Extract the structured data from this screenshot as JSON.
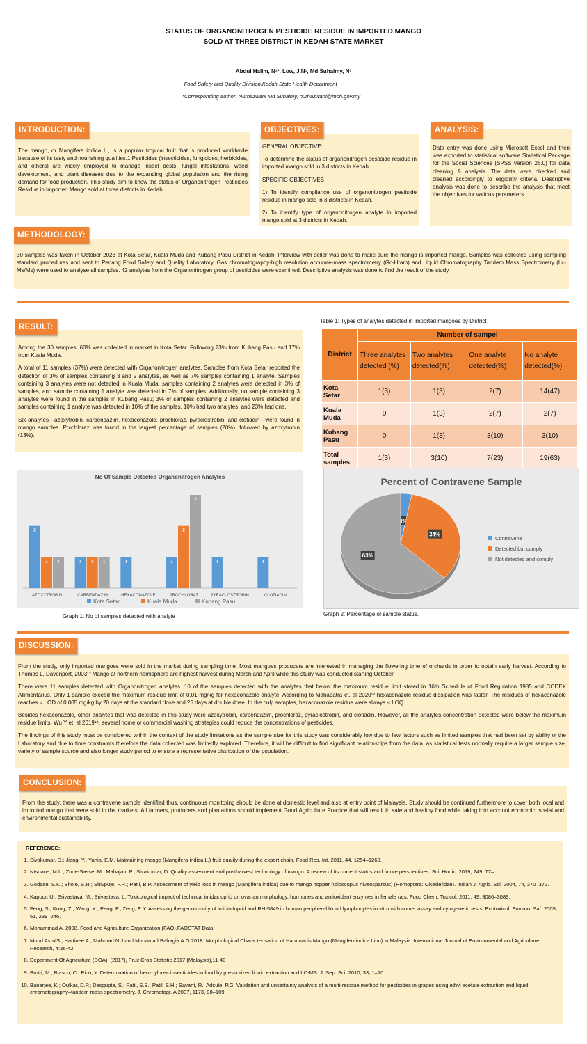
{
  "header": {
    "title_line1": "STATUS OF ORGANONITROGEN PESTICIDE RESIDUE IN IMPORTED MANGO",
    "title_line2": "SOLD AT THREE DISTRICT IN KEDAH STATE MARKET",
    "authors": "Abdul Halim, N¹*, Low, J.N¹, Md Suhaimy, N¹",
    "affiliation": "¹ Food Safety and Quality Division,Kedah State Health Department",
    "corresponding": "*Corresponding author: Nurhazwani Md Suhaimy, nurhazwani@moh.gov.my"
  },
  "introduction": {
    "heading": "INTRODUCTION:",
    "text": "The mango, or Mangifera indica L., is a popular tropical fruit that is produced worldwide because of its tasty and nourishing qualities.1 Pesticides (insecticides, fungicides, herbicides, and others) are widely employed to manage insect pests, fungal infestations, weed development, and plant diseases due to the expanding global population and the rising demand for food production. This study aim to know the status of Organonitrogen Pesticides Residue in Imported Mango sold at three districts in Kedah."
  },
  "objectives": {
    "heading": "OBJECTIVES:",
    "paragraphs": [
      "GENERAL OBJECTIVE:",
      "To determine the status of organonitrogen pestiside residue in imported mango sold in 3 districts in Kedah.",
      "SPECIFIC OBJECTIVES",
      "1)  To identify compliance use of organonitrogen pestiside residue in mango sold in 3 districts in Kedah.",
      "2)  To identify type of organonitrogen analyte in imported mango sold at 3 districts in Kedah."
    ]
  },
  "analysis": {
    "heading": "ANALYSIS:",
    "text": "Data entry was done using Microsoft Excel and then was exported to statistical software Statistical Package for the Social Sciences (SPSS version 26.0) for data cleaning & analysis. The data were checked and cleaned accordingly to eligibility criteria.  Descriptive analysis was done to describe the analysis that meet the objectives for various parameters."
  },
  "methodology": {
    "heading": "METHODOLOGY:",
    "text": "30 samples was taken in October 2023 at Kota Setar, Kuala Muda and Kubang Pasu District in Kedah. Interview with seller was done to make sure the mango is imported mango. Samples was collected using sampling standard procedures and sent to Penang Food Safety and Quality Laboratory. Gas chromatography-high resolution accurate-mass spectrometry (Gc-Hram) and Liquid Chromatography Tandem Mass Spectrometry (Lc-Ms/Ms) were used to analyse all samples. 42 analytes from the Organonitrogen group of pesticides were examined. Descriptive analysis was done to find the result of the study."
  },
  "result": {
    "heading": "RESULT:",
    "paragraphs": [
      "Among the 30 samples, 60% was collected in market in Kota Setar. Following 23% from Kubang Pasu and 17% from Kuala Muda.",
      "A total of 11 samples (37%) were detected with Organonitrogen analytes. Samples from Kota Setar reported the detection of 3% of samples containing 3 and 2 analytes, as well as 7% samples containing 1 analyte. Samples containing 3 analytes were not detected in Kuala Muda; samples containing 2 analytes were detected in 3% of samples, and sample containing 1 analyte was detected in 7% of samples. Additionally, no sample containing 3 analytes were found in the samples in Kubang Pasu; 3% of samples containing 2 analytes were detected and samples containing 1 analyte was detected in 10% of the samples. 10% had two analytes, and 23% had one.",
      "Six analytes—azoxytrobin, carbendazim, hexaconazole, prochloraz, pyraclostrobin, and clotiadin—were found in mango samples. Prochloraz was found in the largest percentage of samples (20%), followed by azoxytrobin (13%)."
    ]
  },
  "table": {
    "caption": "Table 1: Types of analytes detected in imported mangoes by District",
    "header_district": "District",
    "header_group": "Number of sampel",
    "columns": [
      "Three analytes detected (%)",
      "Two analytes detected(%)",
      "One analyte detected(%)",
      "No analyte detected(%)"
    ],
    "rows": [
      [
        "Kota Setar",
        "1(3)",
        "1(3)",
        "2(7)",
        "14(47)"
      ],
      [
        "Kuala Muda",
        "0",
        "1(3)",
        "2(7)",
        "2(7)"
      ],
      [
        "Kubang Pasu",
        "0",
        "1(3)",
        "3(10)",
        "3(10)"
      ],
      [
        "Total samples",
        "1(3)",
        "3(10)",
        "7(23)",
        "19(63)"
      ]
    ]
  },
  "chart_data": [
    {
      "type": "bar",
      "title": "No Of Sample Detected Organonitrogen Analytes",
      "caption": "Graph 1: No of samples detected with analyte",
      "categories": [
        "AZOXYTROBIN",
        "CARBENDAZIM",
        "HEXACONAZOLE",
        "PROCHLORAZ",
        "PYRACLOSTROBIN",
        "CLOTIADIN"
      ],
      "series": [
        {
          "name": "Kota Setar",
          "color": "#5b9bd5",
          "values": [
            2,
            1,
            1,
            1,
            1,
            1
          ]
        },
        {
          "name": "Kuala Muda",
          "color": "#ed7d31",
          "values": [
            1,
            1,
            null,
            2,
            null,
            null
          ]
        },
        {
          "name": "Kubang Pasu",
          "color": "#a5a5a5",
          "values": [
            1,
            1,
            null,
            3,
            null,
            null
          ]
        }
      ],
      "grid": true
    },
    {
      "type": "pie",
      "title": "Percent of Contravene Sample",
      "caption": "Graph 2: Percentage of sample status.",
      "categories": [
        "Contravene",
        "Detected but comply",
        "Not detected and comply"
      ],
      "values": [
        3,
        34,
        63
      ],
      "value_labels": [
        "3%",
        "34%",
        "63%"
      ],
      "colors": [
        "#5b9bd5",
        "#ed7d31",
        "#a5a5a5"
      ]
    }
  ],
  "discussion": {
    "heading": "DISCUSSION:",
    "paragraphs": [
      "From the study, only imported mangoes were sold in the market during sampling time. Most mangoes producers are interested in managing the flowering time of orchards in order to obtain early harvest. According to Thomas L. Davenport, 2003¹² Mango at northern hemisphere are highest harvest during March and April while this study was conducted starting October.",
      "There were 11 samples detected with Organonitrogen analytes. 10 of the samples detected with the analytes that below the maximum residue limit stated in 16th Schedule of Food Regulation 1985 and CODEX Allimentarius. Only 1 sample exceed the maximum residue limit of 0.01 mg/kg for hexaconazole analyte. According to Mahapatra et. al 2020¹³ hexaconazole residue dissipation was faster. The residues of hexaconazole reaches < LOD of 0.005 mg/kg by 20 days at the standard dose and 25 days at double dose. In the pulp samples, hexaconazole residue were always < LOQ.",
      "Besides hexaconazole, other analytes that was detected in this study were azoxytrobin, carbendazim, prochloraz, pyraclostrobin, and clotiadin. However, all the analytes concentration detected were below the maximum residue limits. Wu Y et. al 2019¹⁴, several home or commercial washing strategies could reduce the concentrations of pesticides.",
      "The findings of this study must be considered within the context of the study limitations as the sample size for this study was considerably low due to few factors such as limited samples that had been set by ability of the Laboratory and due to time constraints therefore the data collected was limitedly explored. Therefore, it will be difficult to find significant relationships from the data, as statistical tests normally require a larger sample size, variety of sample source and also longer study period to ensure a representative distribution of the population."
    ]
  },
  "conclusion": {
    "heading": "CONCLUSION:",
    "text": "From the study, there was a contravene sample identified thus, continuous monitoring should be done at domestic level and also at entry point of Malaysia. Study should be continued furthermore to cover both local and imported mango that were sold in the markets. All farmers, producers and plantations should implement Good Agriculture Practice that will result in safe and healthy food while taking into account economic, sosial and environmental sustainability."
  },
  "references": {
    "heading": "REFERENCE:",
    "items": [
      "Sivakumar, D.; Jiang, Y.; Yahia, E.M. Maintaining mango (Mangifera indica L.) fruit quality during the export chain. Food Res. Int. 2011, 44, 1254–1263.",
      "Ntsoane, M.L.; Zude-Sasse, M.; Mahajan, P.; Sivakumar, D. Quality assesment and postharvest technology of mango: A review of its current status and future perspectives. Sci. Hortic. 2019, 249, 77–",
      "Godase, S.K.; Bhole, S.R.; Shivpuje, P.R.; Patil, B.P. Assessment of yield loss in mango (Mangifera indica) due to mango hopper (Idioscopus niveosparsus) (Homoptera: Cicadelidae). Indian J. Agric. Sci. 2004, 74, 370–372.",
      "Kapoor, U.; Srivastava, M.; Srivastava, L. Toxicological impact of technical imidacloprid on ovarian morphology, hormones and antioxidant enzymes in female rats. Food Chem. Toxicol. 2011, 49, 3086–3089.",
      "Feng, S.; Kong, Z.; Wang, X.; Peng, P.; Zeng, E.Y. Assessing the genotoxicity of imidacloprid and RH-5849 in human peripheral blood lymphocytes in vitro with comet assay and cytogenetic tests. Ecotoxicol. Environ. Saf. 2005, 61, 239–246.",
      "Mohammad A. 2008. Food and Agriculture Organization (FAO).FAOSTAT Data",
      "Mohd AsrulS., Hartinee A., Mahmad N.J and Mohamad Bahagia A.G 2018. Morphological Characterisation of Harumanis Mango (Mangiferaindica Linn) in Malaysia. International Journal of Environmental and Agriculture Research, 4:36-42.",
      "Department Of Agriculture (DOA), (2017), Fruit Crop Statistic 2017 (Malaysia),11-40",
      "Brutti, M.; Blasco, C.; Picó, Y. Determination of benzoylurea insecticides in food by pressurized liquid extraction and LC-MS. J. Sep. Sci. 2010, 33, 1–10.",
      "Banerjee, K.; Oulkar, D.P.; Dasgupta, S.; Patil, S.B.; Patil, S.H.; Savant, R.; Adsule, P.G. Validation and uncertainty analysis of a multi-residue method for pesticides in grapes using ethyl acetate extraction and liquid chromatography–tandem mass spectrometry. J. Chromatogr. A 2007, 1173, 98–109."
    ]
  }
}
